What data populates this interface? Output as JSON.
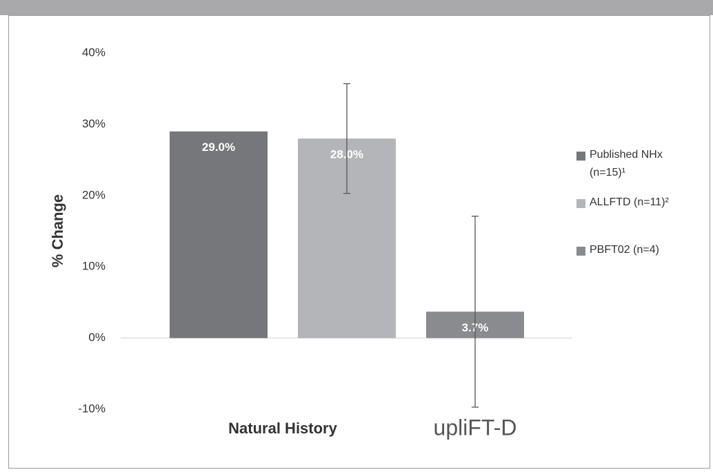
{
  "chart_data": {
    "type": "bar",
    "y_label": "% Change",
    "categories": [
      "Natural History",
      "upliFT-D"
    ],
    "series": [
      {
        "name": "Published NHx (n=15)¹",
        "color": "#76777a",
        "values": [
          29.0,
          null
        ],
        "value_labels": [
          "29.0%",
          null
        ]
      },
      {
        "name": "ALLFTD (n=11)²",
        "color": "#b4b5b8",
        "values": [
          28.0,
          null
        ],
        "value_labels": [
          "28.0%",
          null
        ],
        "errors": [
          7.7,
          null
        ]
      },
      {
        "name": "PBFT02 (n=4)",
        "color": "#8a8b8e",
        "values": [
          null,
          3.7
        ],
        "value_labels": [
          null,
          "3.7%"
        ],
        "errors": [
          null,
          13.4
        ]
      }
    ],
    "ylim": [
      -10,
      40
    ],
    "yticks": [
      {
        "value": -10,
        "label": "-10%"
      },
      {
        "value": 0,
        "label": "0%"
      },
      {
        "value": 10,
        "label": "10%"
      },
      {
        "value": 20,
        "label": "20%"
      },
      {
        "value": 30,
        "label": "30%"
      },
      {
        "value": 40,
        "label": "40%"
      }
    ],
    "legend": "right"
  }
}
